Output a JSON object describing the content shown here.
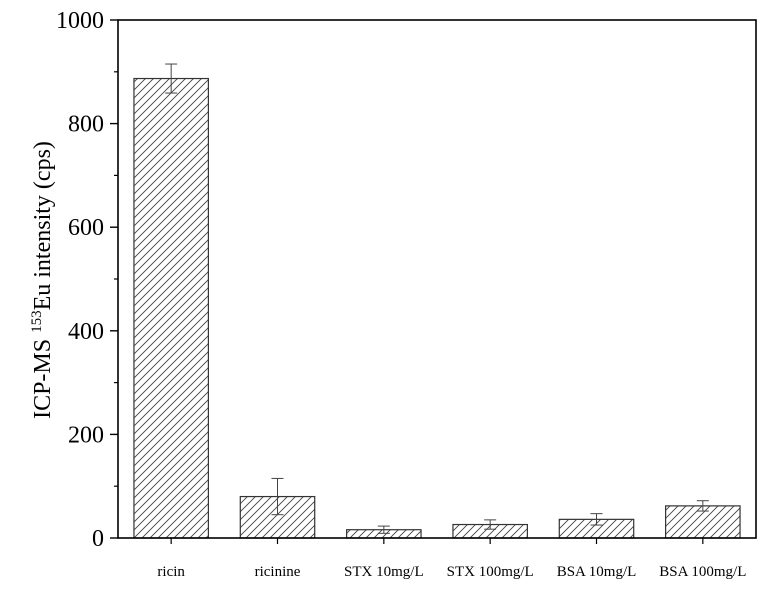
{
  "chart_data": {
    "type": "bar",
    "title": "",
    "xlabel": "",
    "ylabel": {
      "prefix": "ICP-MS ",
      "superscript": "153",
      "suffix": "Eu intensity (cps)"
    },
    "categories": [
      "ricin",
      "ricinine",
      "STX 10mg/L",
      "STX 100mg/L",
      "BSA 10mg/L",
      "BSA 100mg/L"
    ],
    "values": [
      887,
      80,
      16,
      26,
      36,
      62
    ],
    "errors": [
      28,
      35,
      7,
      9,
      11,
      10
    ],
    "ylim": [
      0,
      1000
    ],
    "yticks": [
      0,
      200,
      400,
      600,
      800,
      1000
    ],
    "ytick_labels": [
      "0",
      "200",
      "400",
      "600",
      "800",
      "1000"
    ],
    "grid": false,
    "bar_fill": "hatched",
    "bar_color": "#ffffff",
    "edge_color": "#333333"
  }
}
